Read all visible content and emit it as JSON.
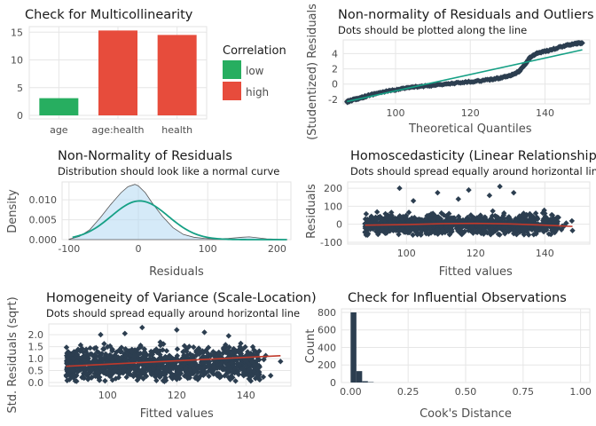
{
  "colors": {
    "low": "#27ae60",
    "high": "#e74c3c",
    "points": "#2c3e50",
    "ref_line": "#16a085",
    "loess": "#c0392b",
    "normal_fill": "#b3d9f2",
    "normal_line": "#16a085"
  },
  "panels": [
    {
      "id": "collinearity",
      "title": "Check for Multicollinearity",
      "subtitle": ""
    },
    {
      "id": "qq",
      "title": "Non-normality of Residuals and Outliers",
      "subtitle": "Dots should be plotted along the line"
    },
    {
      "id": "density",
      "title": "Non-Normality of Residuals",
      "subtitle": "Distribution should look like a normal curve"
    },
    {
      "id": "homosced",
      "title": "Homoscedasticity (Linear Relationship)",
      "subtitle": "Dots should spread equally around horizontal line"
    },
    {
      "id": "scaleloc",
      "title": "Homogeneity of Variance (Scale-Location)",
      "subtitle": "Dots should spread equally around horizontal line"
    },
    {
      "id": "influence",
      "title": "Check for Influential Observations",
      "subtitle": ""
    }
  ],
  "chart_data": [
    {
      "type": "bar",
      "title": "Check for Multicollinearity",
      "categories": [
        "age",
        "age:health",
        "health"
      ],
      "values": [
        3.1,
        15.3,
        14.5
      ],
      "color_class": [
        "low",
        "high",
        "high"
      ],
      "ylim": [
        0,
        16
      ],
      "yticks": [
        0,
        5,
        10,
        15
      ],
      "legend": {
        "title": "Correlation",
        "items": [
          "low",
          "high"
        ],
        "position": "right"
      },
      "xlabel": "",
      "ylabel": ""
    },
    {
      "type": "scatter",
      "title": "Non-normality of Residuals and Outliers",
      "subtitle": "Dots should be plotted along the line",
      "xlabel": "Theoretical Quantiles",
      "ylabel": "(Studentized) Residuals",
      "xlim": [
        86,
        152
      ],
      "ylim": [
        -2.6,
        5.8
      ],
      "xticks": [
        100,
        120,
        140
      ],
      "yticks": [
        -2,
        0,
        2,
        4
      ],
      "reference_line": {
        "x": [
          87,
          150
        ],
        "y": [
          -2.3,
          4.5
        ]
      },
      "points_shape": [
        [
          87,
          -2.35
        ],
        [
          88,
          -2.15
        ],
        [
          90,
          -1.9
        ],
        [
          92,
          -1.6
        ],
        [
          95,
          -1.2
        ],
        [
          100,
          -0.75
        ],
        [
          105,
          -0.4
        ],
        [
          110,
          -0.15
        ],
        [
          115,
          0.05
        ],
        [
          120,
          0.3
        ],
        [
          125,
          0.55
        ],
        [
          128,
          0.8
        ],
        [
          131,
          1.2
        ],
        [
          133,
          1.6
        ],
        [
          134,
          2.2
        ],
        [
          135,
          2.8
        ],
        [
          136,
          3.5
        ],
        [
          138,
          4.1
        ],
        [
          141,
          4.4
        ],
        [
          145,
          5.0
        ],
        [
          148,
          5.3
        ],
        [
          150,
          5.4
        ]
      ]
    },
    {
      "type": "area",
      "title": "Non-Normality of Residuals",
      "subtitle": "Distribution should look like a normal curve",
      "xlabel": "Residuals",
      "ylabel": "Density",
      "xlim": [
        -110,
        220
      ],
      "ylim": [
        0,
        0.0145
      ],
      "xticks": [
        -100,
        0,
        100,
        200
      ],
      "yticks": [
        0.0,
        0.005,
        0.01
      ],
      "ytick_labels": [
        "0.000",
        "0.005",
        "0.010"
      ],
      "empirical_density": {
        "x": [
          -100,
          -85,
          -70,
          -55,
          -40,
          -25,
          -15,
          -5,
          0,
          10,
          20,
          35,
          50,
          65,
          80,
          95,
          110,
          130,
          150,
          160,
          170,
          185,
          200,
          215
        ],
        "y": [
          0.0001,
          0.0008,
          0.0025,
          0.0055,
          0.0088,
          0.0118,
          0.0133,
          0.0139,
          0.0135,
          0.0118,
          0.0092,
          0.0058,
          0.003,
          0.0013,
          0.0006,
          0.0003,
          0.0002,
          0.0003,
          0.0006,
          0.0007,
          0.0005,
          0.0002,
          0.0001,
          0.0
        ]
      },
      "normal_curve": {
        "mean": 2,
        "sd": 41
      }
    },
    {
      "type": "scatter",
      "title": "Homoscedasticity (Linear Relationship)",
      "subtitle": "Dots should spread equally around horizontal line",
      "xlabel": "Fitted values",
      "ylabel": "Residuals",
      "xlim": [
        83,
        153
      ],
      "ylim": [
        -110,
        235
      ],
      "xticks": [
        100,
        120,
        140
      ],
      "yticks": [
        -100,
        0,
        100,
        200
      ],
      "loess": {
        "x": [
          88,
          100,
          110,
          120,
          130,
          140,
          148
        ],
        "y": [
          -5,
          -2,
          3,
          5,
          2,
          -5,
          -12
        ]
      },
      "cloud": {
        "x_range": [
          86,
          150
        ],
        "y_range": [
          -60,
          60
        ],
        "outliers": [
          [
            98,
            200
          ],
          [
            109,
            175
          ],
          [
            118,
            190
          ],
          [
            124,
            160
          ],
          [
            131,
            175
          ],
          [
            115,
            140
          ],
          [
            140,
            60
          ],
          [
            148,
            -35
          ],
          [
            102,
            130
          ],
          [
            127,
            210
          ]
        ]
      }
    },
    {
      "type": "scatter",
      "title": "Homogeneity of Variance (Scale-Location)",
      "subtitle": "Dots should spread equally around horizontal line",
      "xlabel": "Fitted values",
      "ylabel": "Std. Residuals (sqrt)",
      "xlim": [
        83,
        153
      ],
      "ylim": [
        -0.15,
        2.45
      ],
      "xticks": [
        100,
        120,
        140
      ],
      "yticks": [
        0.0,
        0.5,
        1.0,
        1.5,
        2.0
      ],
      "ytick_labels": [
        "0.0",
        "0.5",
        "1.0",
        "1.5",
        "2.0"
      ],
      "loess": {
        "x": [
          88,
          150
        ],
        "y": [
          0.68,
          1.12
        ]
      },
      "cloud": {
        "x_range": [
          86,
          150
        ],
        "y_range": [
          0.1,
          1.6
        ],
        "outliers": [
          [
            110,
            2.3
          ],
          [
            120,
            2.2
          ],
          [
            128,
            2.1
          ],
          [
            105,
            2.05
          ],
          [
            98,
            2.0
          ],
          [
            135,
            1.95
          ],
          [
            150,
            0.88
          ]
        ]
      }
    },
    {
      "type": "bar",
      "title": "Check for Influential Observations",
      "xlabel": "Cook's Distance",
      "ylabel": "Count",
      "xlim": [
        -0.04,
        1.04
      ],
      "ylim": [
        0,
        840
      ],
      "xticks": [
        0.0,
        0.25,
        0.5,
        0.75,
        1.0
      ],
      "xtick_labels": [
        "0.00",
        "0.25",
        "0.50",
        "0.75",
        "1.00"
      ],
      "yticks": [
        0,
        200,
        400,
        600,
        800
      ],
      "bins": [
        {
          "x0": 0.0,
          "x1": 0.025,
          "count": 800
        },
        {
          "x0": 0.025,
          "x1": 0.05,
          "count": 130
        },
        {
          "x0": 0.05,
          "x1": 0.075,
          "count": 15
        },
        {
          "x0": 0.075,
          "x1": 0.1,
          "count": 5
        }
      ]
    }
  ]
}
